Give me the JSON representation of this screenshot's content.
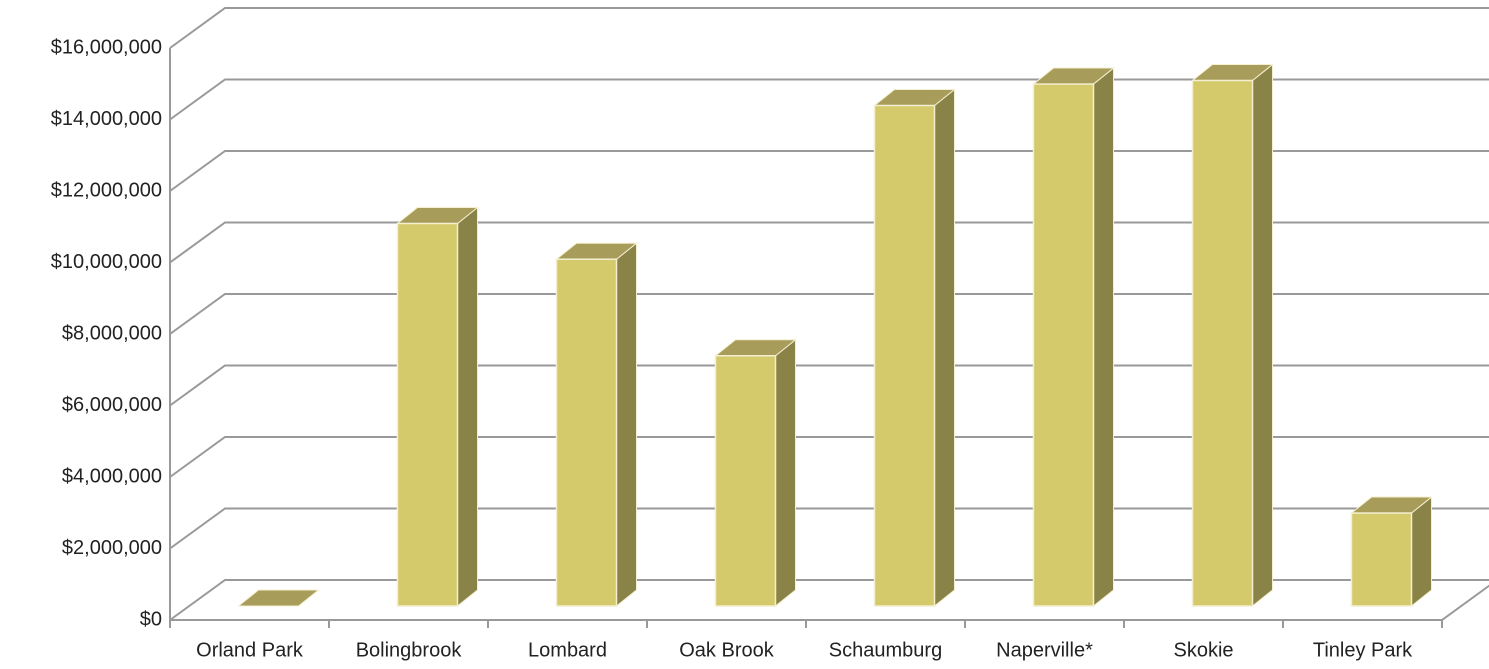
{
  "chart_data": {
    "type": "bar3d",
    "categories": [
      "Orland Park",
      "Bolingbrook",
      "Lombard",
      "Oak Brook",
      "Schaumburg",
      "Naperville*",
      "Skokie",
      "Tinley Park"
    ],
    "values": [
      0,
      10700000,
      9700000,
      7000000,
      14000000,
      14600000,
      14700000,
      2600000
    ],
    "color": "#d4c96b",
    "top_color": "#a89c5a",
    "side_color": "#8a8347",
    "ylim": [
      0,
      16000000
    ],
    "yticks": [
      {
        "value": 0,
        "label": "$0"
      },
      {
        "value": 2000000,
        "label": "$2,000,000"
      },
      {
        "value": 4000000,
        "label": "$4,000,000"
      },
      {
        "value": 6000000,
        "label": "$6,000,000"
      },
      {
        "value": 8000000,
        "label": "$8,000,000"
      },
      {
        "value": 10000000,
        "label": "$10,000,000"
      },
      {
        "value": 12000000,
        "label": "$12,000,000"
      },
      {
        "value": 14000000,
        "label": "$14,000,000"
      },
      {
        "value": 16000000,
        "label": "$16,000,000"
      }
    ],
    "grid": true
  }
}
